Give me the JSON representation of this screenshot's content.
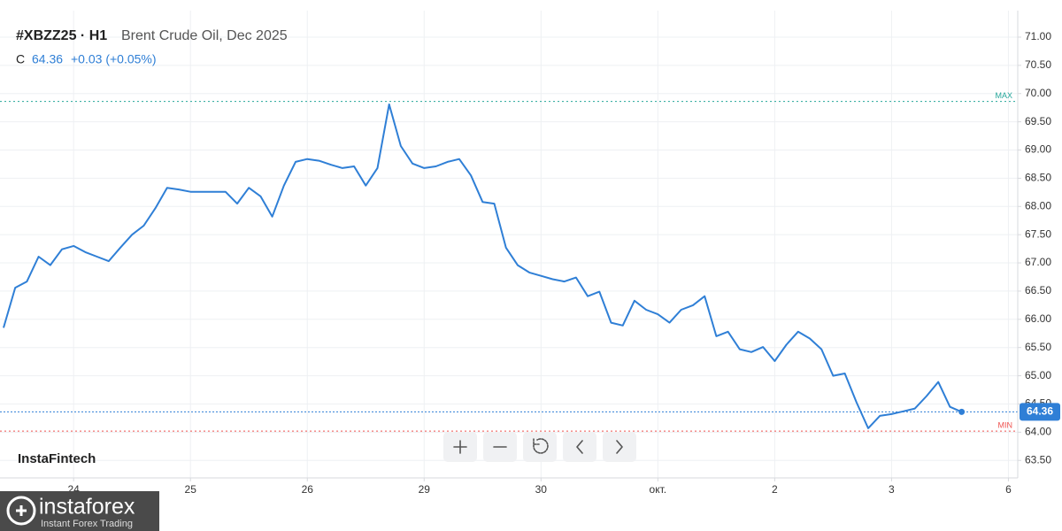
{
  "chart_data": {
    "type": "line",
    "symbol": "#XBZZ25 · H1",
    "title": "Brent Crude Oil, Dec 2025",
    "price_prefix": "C",
    "last_price": 64.36,
    "change": "+0.03 (+0.05%)",
    "watermark": "InstaFintech",
    "logo": {
      "name": "instaforex",
      "tagline": "Instant Forex Trading"
    },
    "xlim": [
      -0.63,
      8.08
    ],
    "xticks": [
      {
        "value": 0,
        "label": "24"
      },
      {
        "value": 1,
        "label": "25"
      },
      {
        "value": 2,
        "label": "26"
      },
      {
        "value": 3,
        "label": "29"
      },
      {
        "value": 4,
        "label": "30"
      },
      {
        "value": 5,
        "label": "окт."
      },
      {
        "value": 6,
        "label": "2"
      },
      {
        "value": 7,
        "label": "3"
      },
      {
        "value": 8,
        "label": "6"
      }
    ],
    "ylim": [
      63.19,
      71.47
    ],
    "yticks": [
      {
        "value": 63.5,
        "label": "63.50"
      },
      {
        "value": 64,
        "label": "64.00"
      },
      {
        "value": 64.5,
        "label": "64.50"
      },
      {
        "value": 65,
        "label": "65.00"
      },
      {
        "value": 65.5,
        "label": "65.50"
      },
      {
        "value": 66,
        "label": "66.00"
      },
      {
        "value": 66.5,
        "label": "66.50"
      },
      {
        "value": 67,
        "label": "67.00"
      },
      {
        "value": 67.5,
        "label": "67.50"
      },
      {
        "value": 68,
        "label": "68.00"
      },
      {
        "value": 68.5,
        "label": "68.50"
      },
      {
        "value": 69,
        "label": "69.00"
      },
      {
        "value": 69.5,
        "label": "69.50"
      },
      {
        "value": 70,
        "label": "70.00"
      },
      {
        "value": 70.5,
        "label": "70.50"
      },
      {
        "value": 71,
        "label": "71.00"
      }
    ],
    "grid": true,
    "ref_lines": [
      {
        "name": "MAX",
        "value": 69.86,
        "color": "#26a69a"
      },
      {
        "name": "MIN",
        "value": 64.02,
        "color": "#ef5350"
      }
    ],
    "series": [
      {
        "name": "Brent Crude Oil",
        "color": "#2f7fd6",
        "x": [
          -0.6,
          -0.5,
          -0.4,
          -0.3,
          -0.2,
          -0.1,
          0,
          0.1,
          0.2,
          0.3,
          0.4,
          0.5,
          0.6,
          0.7,
          0.8,
          0.9,
          1,
          1.1,
          1.2,
          1.3,
          1.4,
          1.5,
          1.6,
          1.7,
          1.8,
          1.9,
          2,
          2.1,
          2.2,
          2.3,
          2.4,
          2.5,
          2.6,
          2.7,
          2.8,
          2.9,
          3,
          3.1,
          3.2,
          3.3,
          3.4,
          3.5,
          3.6,
          3.7,
          3.8,
          3.9,
          4,
          4.1,
          4.2,
          4.3,
          4.4,
          4.5,
          4.6,
          4.7,
          4.8,
          4.9,
          5,
          5.1,
          5.2,
          5.3,
          5.4,
          5.5,
          5.6,
          5.7,
          5.8,
          5.9,
          6,
          6.1,
          6.2,
          6.3,
          6.4,
          6.5,
          6.6,
          6.7,
          6.8,
          6.9,
          7,
          7.1,
          7.2,
          7.3,
          7.4,
          7.5,
          7.6
        ],
        "values": [
          65.85,
          66.56,
          66.67,
          67.11,
          66.96,
          67.24,
          67.3,
          67.19,
          67.11,
          67.03,
          67.27,
          67.5,
          67.66,
          67.97,
          68.33,
          68.3,
          68.26,
          68.26,
          68.26,
          68.26,
          68.05,
          68.33,
          68.18,
          67.82,
          68.37,
          68.79,
          68.84,
          68.81,
          68.74,
          68.68,
          68.71,
          68.37,
          68.68,
          69.81,
          69.07,
          68.76,
          68.68,
          68.71,
          68.79,
          68.84,
          68.55,
          68.08,
          68.05,
          67.27,
          66.96,
          66.83,
          66.77,
          66.71,
          66.67,
          66.74,
          66.41,
          66.49,
          65.94,
          65.89,
          66.33,
          66.17,
          66.09,
          65.94,
          66.17,
          66.25,
          66.41,
          65.7,
          65.78,
          65.47,
          65.42,
          65.51,
          65.26,
          65.55,
          65.78,
          65.66,
          65.47,
          65,
          65.04,
          64.53,
          64.07,
          64.29,
          64.32,
          64.37,
          64.42,
          64.64,
          64.89,
          64.45,
          64.36
        ]
      }
    ]
  }
}
